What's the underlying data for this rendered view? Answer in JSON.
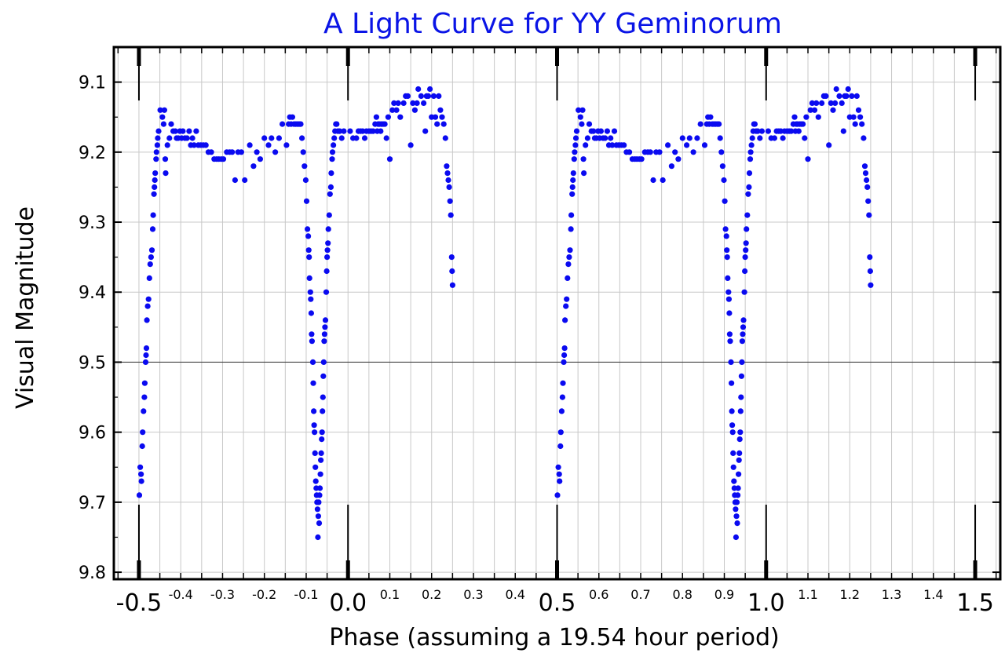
{
  "colors": {
    "title": "#0a14e6",
    "points": "#0a0af0",
    "grid": "#c8c8c8",
    "axis": "#000000"
  },
  "chart_data": {
    "type": "scatter",
    "title": "A Light Curve for YY Geminorum",
    "xlabel": "Phase (assuming a 19.54 hour period)",
    "ylabel": "Visual Magnitude",
    "xlim": [
      -0.56,
      1.56
    ],
    "ylim": [
      9.05,
      9.81
    ],
    "y_inverted": true,
    "grid": true,
    "highlight_line_y": 9.5,
    "y_ticks": [
      {
        "value": 9.1,
        "label": "9.1"
      },
      {
        "value": 9.2,
        "label": "9.2"
      },
      {
        "value": 9.3,
        "label": "9.3"
      },
      {
        "value": 9.4,
        "label": "9.4"
      },
      {
        "value": 9.5,
        "label": "9.5"
      },
      {
        "value": 9.6,
        "label": "9.6"
      },
      {
        "value": 9.7,
        "label": "9.7"
      },
      {
        "value": 9.8,
        "label": "9.8"
      }
    ],
    "x_major_ticks": [
      {
        "value": -0.5,
        "label": "-0.5"
      },
      {
        "value": 0.0,
        "label": "0.0"
      },
      {
        "value": 0.5,
        "label": "0.5"
      },
      {
        "value": 1.0,
        "label": "1.0"
      },
      {
        "value": 1.5,
        "label": "1.5"
      }
    ],
    "x_minor_ticks": [
      {
        "value": -0.4,
        "label": "-0.4"
      },
      {
        "value": -0.3,
        "label": "-0.3"
      },
      {
        "value": -0.2,
        "label": "-0.2"
      },
      {
        "value": -0.1,
        "label": "-0.1"
      },
      {
        "value": 0.1,
        "label": "0.1"
      },
      {
        "value": 0.2,
        "label": "0.2"
      },
      {
        "value": 0.3,
        "label": "0.3"
      },
      {
        "value": 0.4,
        "label": "0.4"
      },
      {
        "value": 0.6,
        "label": "0.6"
      },
      {
        "value": 0.7,
        "label": "0.7"
      },
      {
        "value": 0.8,
        "label": "0.8"
      },
      {
        "value": 0.9,
        "label": "0.9"
      },
      {
        "value": 1.1,
        "label": "1.1"
      },
      {
        "value": 1.2,
        "label": "1.2"
      },
      {
        "value": 1.3,
        "label": "1.3"
      },
      {
        "value": 1.4,
        "label": "1.4"
      }
    ],
    "period_repeat": 1.0,
    "series": [
      {
        "points": [
          [
            -0.499,
            9.69
          ],
          [
            -0.497,
            9.65
          ],
          [
            -0.495,
            9.66
          ],
          [
            -0.494,
            9.67
          ],
          [
            -0.492,
            9.62
          ],
          [
            -0.491,
            9.6
          ],
          [
            -0.489,
            9.57
          ],
          [
            -0.487,
            9.55
          ],
          [
            -0.486,
            9.53
          ],
          [
            -0.484,
            9.5
          ],
          [
            -0.483,
            9.49
          ],
          [
            -0.482,
            9.48
          ],
          [
            -0.481,
            9.44
          ],
          [
            -0.479,
            9.42
          ],
          [
            -0.477,
            9.41
          ],
          [
            -0.475,
            9.38
          ],
          [
            -0.473,
            9.36
          ],
          [
            -0.471,
            9.35
          ],
          [
            -0.469,
            9.34
          ],
          [
            -0.467,
            9.31
          ],
          [
            -0.466,
            9.29
          ],
          [
            -0.464,
            9.26
          ],
          [
            -0.463,
            9.25
          ],
          [
            -0.462,
            9.24
          ],
          [
            -0.461,
            9.23
          ],
          [
            -0.459,
            9.21
          ],
          [
            -0.458,
            9.2
          ],
          [
            -0.456,
            9.19
          ],
          [
            -0.455,
            9.18
          ],
          [
            -0.453,
            9.17
          ],
          [
            -0.449,
            9.14
          ],
          [
            -0.444,
            9.15
          ],
          [
            -0.441,
            9.16
          ],
          [
            -0.439,
            9.14
          ],
          [
            -0.437,
            9.21
          ],
          [
            -0.436,
            9.23
          ],
          [
            -0.432,
            9.19
          ],
          [
            -0.427,
            9.18
          ],
          [
            -0.423,
            9.16
          ],
          [
            -0.418,
            9.17
          ],
          [
            -0.413,
            9.17
          ],
          [
            -0.41,
            9.18
          ],
          [
            -0.406,
            9.18
          ],
          [
            -0.402,
            9.17
          ],
          [
            -0.398,
            9.18
          ],
          [
            -0.395,
            9.17
          ],
          [
            -0.39,
            9.18
          ],
          [
            -0.385,
            9.18
          ],
          [
            -0.38,
            9.17
          ],
          [
            -0.376,
            9.19
          ],
          [
            -0.372,
            9.18
          ],
          [
            -0.368,
            9.19
          ],
          [
            -0.363,
            9.17
          ],
          [
            -0.358,
            9.19
          ],
          [
            -0.352,
            9.19
          ],
          [
            -0.346,
            9.19
          ],
          [
            -0.34,
            9.19
          ],
          [
            -0.334,
            9.2
          ],
          [
            -0.327,
            9.2
          ],
          [
            -0.32,
            9.21
          ],
          [
            -0.314,
            9.21
          ],
          [
            -0.309,
            9.21
          ],
          [
            -0.303,
            9.21
          ],
          [
            -0.298,
            9.21
          ],
          [
            -0.29,
            9.2
          ],
          [
            -0.283,
            9.2
          ],
          [
            -0.277,
            9.2
          ],
          [
            -0.27,
            9.24
          ],
          [
            -0.263,
            9.2
          ],
          [
            -0.255,
            9.2
          ],
          [
            -0.247,
            9.24
          ],
          [
            -0.235,
            9.19
          ],
          [
            -0.226,
            9.22
          ],
          [
            -0.218,
            9.2
          ],
          [
            -0.21,
            9.21
          ],
          [
            -0.2,
            9.18
          ],
          [
            -0.19,
            9.19
          ],
          [
            -0.183,
            9.18
          ],
          [
            -0.174,
            9.2
          ],
          [
            -0.165,
            9.18
          ],
          [
            -0.157,
            9.16
          ],
          [
            -0.147,
            9.19
          ],
          [
            -0.142,
            9.16
          ],
          [
            -0.139,
            9.15
          ],
          [
            -0.136,
            9.16
          ],
          [
            -0.133,
            9.15
          ],
          [
            -0.129,
            9.16
          ],
          [
            -0.125,
            9.16
          ],
          [
            -0.121,
            9.16
          ],
          [
            -0.117,
            9.16
          ],
          [
            -0.113,
            9.16
          ],
          [
            -0.11,
            9.18
          ],
          [
            -0.107,
            9.2
          ],
          [
            -0.104,
            9.22
          ],
          [
            -0.101,
            9.24
          ],
          [
            -0.099,
            9.27
          ],
          [
            -0.097,
            9.31
          ],
          [
            -0.095,
            9.32
          ],
          [
            -0.094,
            9.34
          ],
          [
            -0.093,
            9.35
          ],
          [
            -0.092,
            9.38
          ],
          [
            -0.09,
            9.4
          ],
          [
            -0.089,
            9.41
          ],
          [
            -0.088,
            9.43
          ],
          [
            -0.087,
            9.46
          ],
          [
            -0.086,
            9.47
          ],
          [
            -0.084,
            9.5
          ],
          [
            -0.083,
            9.53
          ],
          [
            -0.082,
            9.57
          ],
          [
            -0.081,
            9.59
          ],
          [
            -0.08,
            9.6
          ],
          [
            -0.079,
            9.63
          ],
          [
            -0.078,
            9.65
          ],
          [
            -0.077,
            9.67
          ],
          [
            -0.076,
            9.68
          ],
          [
            -0.075,
            9.69
          ],
          [
            -0.074,
            9.7
          ],
          [
            -0.073,
            9.71
          ],
          [
            -0.072,
            9.75
          ],
          [
            -0.071,
            9.72
          ],
          [
            -0.07,
            9.7
          ],
          [
            -0.069,
            9.73
          ],
          [
            -0.068,
            9.69
          ],
          [
            -0.067,
            9.68
          ],
          [
            -0.066,
            9.66
          ],
          [
            -0.065,
            9.64
          ],
          [
            -0.064,
            9.63
          ],
          [
            -0.063,
            9.61
          ],
          [
            -0.062,
            9.6
          ],
          [
            -0.061,
            9.57
          ],
          [
            -0.06,
            9.55
          ],
          [
            -0.059,
            9.52
          ],
          [
            -0.058,
            9.5
          ],
          [
            -0.057,
            9.47
          ],
          [
            -0.056,
            9.46
          ],
          [
            -0.055,
            9.45
          ],
          [
            -0.054,
            9.44
          ],
          [
            -0.052,
            9.4
          ],
          [
            -0.051,
            9.37
          ],
          [
            -0.05,
            9.35
          ],
          [
            -0.049,
            9.34
          ],
          [
            -0.048,
            9.33
          ],
          [
            -0.047,
            9.31
          ],
          [
            -0.045,
            9.29
          ],
          [
            -0.043,
            9.26
          ],
          [
            -0.041,
            9.25
          ],
          [
            -0.04,
            9.23
          ],
          [
            -0.038,
            9.21
          ],
          [
            -0.037,
            9.2
          ],
          [
            -0.035,
            9.19
          ],
          [
            -0.033,
            9.18
          ],
          [
            -0.031,
            9.17
          ],
          [
            -0.029,
            9.16
          ],
          [
            -0.027,
            9.16
          ],
          [
            -0.024,
            9.17
          ],
          [
            -0.02,
            9.17
          ],
          [
            -0.015,
            9.18
          ],
          [
            -0.01,
            9.17
          ],
          [
            0.005,
            9.17
          ],
          [
            0.012,
            9.18
          ],
          [
            0.02,
            9.18
          ],
          [
            0.025,
            9.17
          ],
          [
            0.03,
            9.17
          ],
          [
            0.035,
            9.17
          ],
          [
            0.04,
            9.18
          ],
          [
            0.044,
            9.17
          ],
          [
            0.05,
            9.17
          ],
          [
            0.055,
            9.17
          ],
          [
            0.06,
            9.17
          ],
          [
            0.065,
            9.16
          ],
          [
            0.068,
            9.15
          ],
          [
            0.07,
            9.17
          ],
          [
            0.072,
            9.16
          ],
          [
            0.075,
            9.16
          ],
          [
            0.078,
            9.17
          ],
          [
            0.08,
            9.16
          ],
          [
            0.084,
            9.16
          ],
          [
            0.088,
            9.16
          ],
          [
            0.092,
            9.18
          ],
          [
            0.096,
            9.15
          ],
          [
            0.1,
            9.21
          ],
          [
            0.106,
            9.14
          ],
          [
            0.11,
            9.13
          ],
          [
            0.116,
            9.14
          ],
          [
            0.12,
            9.13
          ],
          [
            0.125,
            9.15
          ],
          [
            0.133,
            9.13
          ],
          [
            0.138,
            9.12
          ],
          [
            0.143,
            9.12
          ],
          [
            0.15,
            9.19
          ],
          [
            0.155,
            9.13
          ],
          [
            0.16,
            9.14
          ],
          [
            0.165,
            9.13
          ],
          [
            0.168,
            9.11
          ],
          [
            0.175,
            9.12
          ],
          [
            0.181,
            9.13
          ],
          [
            0.185,
            9.17
          ],
          [
            0.188,
            9.12
          ],
          [
            0.192,
            9.12
          ],
          [
            0.196,
            9.11
          ],
          [
            0.2,
            9.15
          ],
          [
            0.205,
            9.12
          ],
          [
            0.209,
            9.15
          ],
          [
            0.213,
            9.16
          ],
          [
            0.217,
            9.12
          ],
          [
            0.221,
            9.14
          ],
          [
            0.225,
            9.15
          ],
          [
            0.229,
            9.16
          ],
          [
            0.233,
            9.18
          ],
          [
            0.236,
            9.22
          ],
          [
            0.238,
            9.23
          ],
          [
            0.24,
            9.24
          ],
          [
            0.242,
            9.25
          ],
          [
            0.244,
            9.27
          ],
          [
            0.246,
            9.29
          ],
          [
            0.248,
            9.35
          ],
          [
            0.249,
            9.37
          ],
          [
            0.25,
            9.39
          ]
        ]
      }
    ]
  }
}
